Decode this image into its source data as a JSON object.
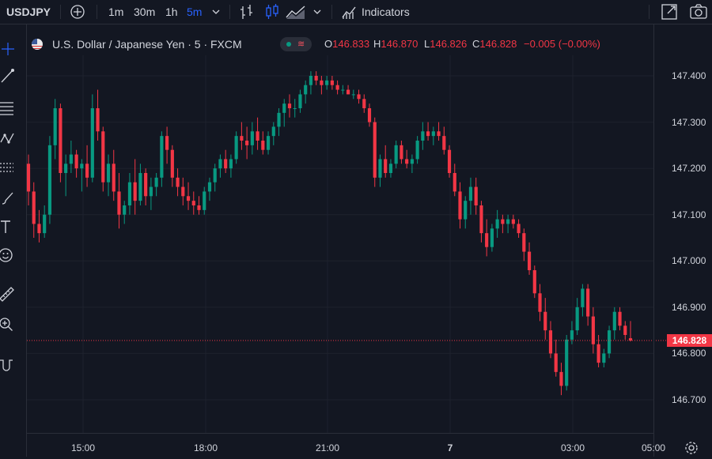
{
  "toolbar": {
    "symbol": "USDJPY",
    "intervals": [
      "1m",
      "30m",
      "1h",
      "5m"
    ],
    "active_interval": "5m",
    "indicators_label": "Indicators",
    "icons": [
      "add-symbol-icon",
      "chevron-down-icon",
      "bar-style-icon",
      "candle-style-icon",
      "area-style-icon",
      "chevron-down-icon",
      "indicators-icon",
      "fullscreen-icon",
      "camera-icon"
    ]
  },
  "left_tools": [
    "crosshair-icon",
    "trendline-icon",
    "fib-icon",
    "pattern-icon",
    "projection-icon",
    "brush-icon",
    "text-icon",
    "emoji-icon",
    "ruler-icon",
    "zoom-in-icon",
    "magnet-icon"
  ],
  "legend": {
    "title": "U.S. Dollar / Japanese Yen · 5 · FXCM",
    "o_label": "O",
    "o_value": "146.833",
    "h_label": "H",
    "h_value": "146.870",
    "l_label": "L",
    "l_value": "146.826",
    "c_label": "C",
    "c_value": "146.828",
    "change": "−0.005 (−0.00%)"
  },
  "colors": {
    "up": "#089981",
    "down": "#f23645",
    "background": "#131722",
    "grid": "#1e222d"
  },
  "last_price_label": "146.828",
  "settings_icon": "settings-icon",
  "chart_data": {
    "type": "candlestick",
    "title": "U.S. Dollar / Japanese Yen · 5 · FXCM",
    "interval": "5",
    "y_ticks": [
      "147.400",
      "147.300",
      "147.200",
      "147.100",
      "147.000",
      "146.900",
      "146.800",
      "146.700"
    ],
    "x_ticks": [
      "15:00",
      "18:00",
      "21:00",
      "7",
      "03:00",
      "05:00"
    ],
    "ylim": [
      146.65,
      147.45
    ],
    "last_price": 146.828,
    "grid": true,
    "candles": [
      [
        147.21,
        147.23,
        147.12,
        147.15
      ],
      [
        147.15,
        147.17,
        147.05,
        147.08
      ],
      [
        147.08,
        147.11,
        147.04,
        147.06
      ],
      [
        147.06,
        147.12,
        147.05,
        147.1
      ],
      [
        147.1,
        147.27,
        147.08,
        147.25
      ],
      [
        147.25,
        147.35,
        147.22,
        147.33
      ],
      [
        147.33,
        147.34,
        147.17,
        147.19
      ],
      [
        147.19,
        147.23,
        147.14,
        147.21
      ],
      [
        147.21,
        147.26,
        147.19,
        147.23
      ],
      [
        147.23,
        147.24,
        147.18,
        147.2
      ],
      [
        147.2,
        147.22,
        147.15,
        147.21
      ],
      [
        147.21,
        147.25,
        147.16,
        147.18
      ],
      [
        147.18,
        147.36,
        147.17,
        147.33
      ],
      [
        147.33,
        147.37,
        147.26,
        147.28
      ],
      [
        147.28,
        147.29,
        147.15,
        147.17
      ],
      [
        147.17,
        147.23,
        147.14,
        147.21
      ],
      [
        147.21,
        147.24,
        147.13,
        147.15
      ],
      [
        147.15,
        147.19,
        147.07,
        147.1
      ],
      [
        147.1,
        147.13,
        147.08,
        147.12
      ],
      [
        147.12,
        147.19,
        147.1,
        147.17
      ],
      [
        147.17,
        147.22,
        147.1,
        147.13
      ],
      [
        147.13,
        147.21,
        147.12,
        147.19
      ],
      [
        147.19,
        147.2,
        147.12,
        147.14
      ],
      [
        147.14,
        147.18,
        147.11,
        147.16
      ],
      [
        147.16,
        147.19,
        147.14,
        147.18
      ],
      [
        147.18,
        147.28,
        147.16,
        147.27
      ],
      [
        147.27,
        147.29,
        147.21,
        147.24
      ],
      [
        147.24,
        147.25,
        147.16,
        147.18
      ],
      [
        147.18,
        147.2,
        147.14,
        147.16
      ],
      [
        147.16,
        147.18,
        147.12,
        147.14
      ],
      [
        147.14,
        147.17,
        147.11,
        147.13
      ],
      [
        147.13,
        147.15,
        147.1,
        147.12
      ],
      [
        147.12,
        147.14,
        147.1,
        147.11
      ],
      [
        147.11,
        147.16,
        147.1,
        147.15
      ],
      [
        147.15,
        147.18,
        147.13,
        147.17
      ],
      [
        147.17,
        147.21,
        147.15,
        147.2
      ],
      [
        147.2,
        147.23,
        147.18,
        147.22
      ],
      [
        147.22,
        147.24,
        147.19,
        147.2
      ],
      [
        147.2,
        147.23,
        147.18,
        147.22
      ],
      [
        147.22,
        147.28,
        147.21,
        147.27
      ],
      [
        147.27,
        147.3,
        147.24,
        147.26
      ],
      [
        147.26,
        147.29,
        147.22,
        147.25
      ],
      [
        147.25,
        147.3,
        147.23,
        147.28
      ],
      [
        147.28,
        147.31,
        147.24,
        147.26
      ],
      [
        147.26,
        147.28,
        147.23,
        147.24
      ],
      [
        147.24,
        147.28,
        147.23,
        147.27
      ],
      [
        147.27,
        147.3,
        147.25,
        147.29
      ],
      [
        147.29,
        147.33,
        147.27,
        147.32
      ],
      [
        147.32,
        147.35,
        147.29,
        147.34
      ],
      [
        147.34,
        147.36,
        147.31,
        147.33
      ],
      [
        147.33,
        147.35,
        147.31,
        147.33
      ],
      [
        147.33,
        147.37,
        147.32,
        147.36
      ],
      [
        147.36,
        147.39,
        147.34,
        147.38
      ],
      [
        147.38,
        147.41,
        147.36,
        147.4
      ],
      [
        147.4,
        147.41,
        147.38,
        147.39
      ],
      [
        147.39,
        147.4,
        147.36,
        147.38
      ],
      [
        147.38,
        147.4,
        147.37,
        147.39
      ],
      [
        147.39,
        147.4,
        147.37,
        147.38
      ],
      [
        147.38,
        147.39,
        147.36,
        147.37
      ],
      [
        147.37,
        147.38,
        147.36,
        147.37
      ],
      [
        147.37,
        147.38,
        147.36,
        147.36
      ],
      [
        147.36,
        147.37,
        147.35,
        147.36
      ],
      [
        147.36,
        147.37,
        147.34,
        147.35
      ],
      [
        147.35,
        147.36,
        147.32,
        147.33
      ],
      [
        147.33,
        147.34,
        147.29,
        147.3
      ],
      [
        147.3,
        147.31,
        147.16,
        147.18
      ],
      [
        147.18,
        147.23,
        147.16,
        147.22
      ],
      [
        147.22,
        147.25,
        147.18,
        147.19
      ],
      [
        147.19,
        147.22,
        147.18,
        147.21
      ],
      [
        147.21,
        147.26,
        147.2,
        147.25
      ],
      [
        147.25,
        147.26,
        147.21,
        147.22
      ],
      [
        147.22,
        147.24,
        147.2,
        147.21
      ],
      [
        147.21,
        147.23,
        147.19,
        147.22
      ],
      [
        147.22,
        147.27,
        147.21,
        147.26
      ],
      [
        147.26,
        147.3,
        147.24,
        147.28
      ],
      [
        147.28,
        147.3,
        147.26,
        147.27
      ],
      [
        147.27,
        147.29,
        147.25,
        147.28
      ],
      [
        147.28,
        147.3,
        147.26,
        147.27
      ],
      [
        147.27,
        147.29,
        147.23,
        147.24
      ],
      [
        147.24,
        147.25,
        147.18,
        147.19
      ],
      [
        147.19,
        147.21,
        147.14,
        147.15
      ],
      [
        147.15,
        147.17,
        147.07,
        147.09
      ],
      [
        147.09,
        147.14,
        147.07,
        147.13
      ],
      [
        147.13,
        147.18,
        147.1,
        147.16
      ],
      [
        147.16,
        147.18,
        147.1,
        147.12
      ],
      [
        147.12,
        147.13,
        147.04,
        147.06
      ],
      [
        147.06,
        147.09,
        147.01,
        147.03
      ],
      [
        147.03,
        147.08,
        147.02,
        147.07
      ],
      [
        147.07,
        147.11,
        147.05,
        147.09
      ],
      [
        147.09,
        147.1,
        147.06,
        147.08
      ],
      [
        147.08,
        147.1,
        147.06,
        147.09
      ],
      [
        147.09,
        147.1,
        147.07,
        147.08
      ],
      [
        147.08,
        147.09,
        147.05,
        147.06
      ],
      [
        147.06,
        147.07,
        147.0,
        147.02
      ],
      [
        147.02,
        147.04,
        146.97,
        146.98
      ],
      [
        146.98,
        146.99,
        146.92,
        146.93
      ],
      [
        146.93,
        146.95,
        146.87,
        146.89
      ],
      [
        146.89,
        146.92,
        146.83,
        146.85
      ],
      [
        146.85,
        146.87,
        146.79,
        146.8
      ],
      [
        146.8,
        146.83,
        146.75,
        146.76
      ],
      [
        146.76,
        146.78,
        146.71,
        146.73
      ],
      [
        146.73,
        146.84,
        146.72,
        146.83
      ],
      [
        146.83,
        146.87,
        146.82,
        146.85
      ],
      [
        146.85,
        146.92,
        146.84,
        146.9
      ],
      [
        146.9,
        146.95,
        146.88,
        146.94
      ],
      [
        146.94,
        146.95,
        146.86,
        146.88
      ],
      [
        146.88,
        146.9,
        146.8,
        146.82
      ],
      [
        146.82,
        146.84,
        146.77,
        146.78
      ],
      [
        146.78,
        146.81,
        146.77,
        146.8
      ],
      [
        146.8,
        146.86,
        146.79,
        146.85
      ],
      [
        146.85,
        146.9,
        146.83,
        146.89
      ],
      [
        146.89,
        146.9,
        146.85,
        146.86
      ],
      [
        146.86,
        146.87,
        146.83,
        146.84
      ],
      [
        146.833,
        146.87,
        146.826,
        146.828
      ]
    ]
  }
}
